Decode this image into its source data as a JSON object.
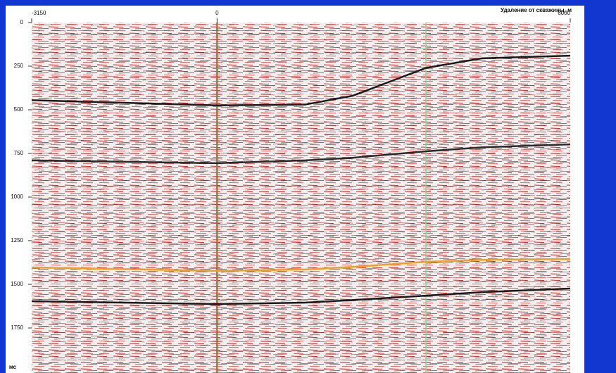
{
  "chart_data": {
    "type": "seismic-section",
    "x_label": "Удаление от скважины, м",
    "y_label": "мс",
    "xlim": [
      -3150,
      6000
    ],
    "xticks": [
      -3150,
      0,
      6000
    ],
    "ylim": [
      0,
      2000
    ],
    "yticks": [
      0,
      250,
      500,
      750,
      1000,
      1250,
      1500,
      1750
    ],
    "x": [
      -3150,
      0,
      1500,
      2300,
      3550,
      4500,
      6000
    ],
    "series": [
      {
        "color": "#1a1a1a",
        "values": [
          445,
          475,
          470,
          420,
          260,
          205,
          190
        ]
      },
      {
        "color": "#2a2a2a",
        "values": [
          790,
          806,
          790,
          775,
          738,
          715,
          698
        ]
      },
      {
        "color": "#f0a020",
        "values": [
          1403,
          1423,
          1415,
          1400,
          1371,
          1360,
          1355
        ]
      },
      {
        "color": "#1a1a1a",
        "values": [
          1597,
          1613,
          1605,
          1590,
          1565,
          1545,
          1524
        ]
      }
    ]
  }
}
